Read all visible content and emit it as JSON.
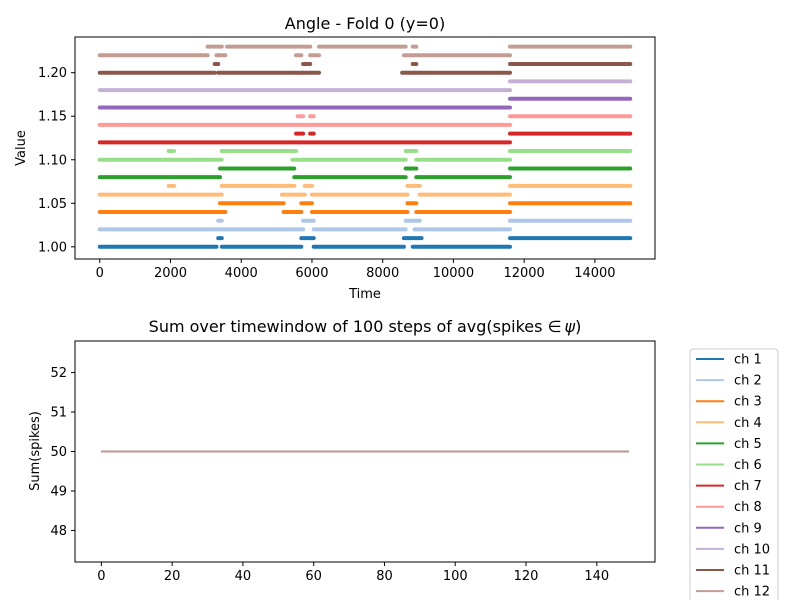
{
  "chart_data": [
    {
      "type": "scatter",
      "title": "Angle - Fold 0 (y=0)",
      "xlabel": "Time",
      "ylabel": "Value",
      "xlim": [
        -700,
        15700
      ],
      "ylim": [
        0.986,
        1.241
      ],
      "xticks": [
        0,
        2000,
        4000,
        6000,
        8000,
        10000,
        12000,
        14000
      ],
      "xtick_labels": [
        "0",
        "2000",
        "4000",
        "6000",
        "8000",
        "10000",
        "12000",
        "14000"
      ],
      "yticks": [
        1.0,
        1.05,
        1.1,
        1.15,
        1.2
      ],
      "ytick_labels": [
        "1.00",
        "1.05",
        "1.10",
        "1.15",
        "1.20"
      ],
      "grid": false,
      "legend": false,
      "series": [
        {
          "color": "#1f77b4",
          "segments": [
            [
              0,
              3300,
              1.0
            ],
            [
              3350,
              3450,
              1.01
            ],
            [
              3450,
              5700,
              1.0
            ],
            [
              5700,
              6050,
              1.01
            ],
            [
              6050,
              8600,
              1.0
            ],
            [
              8600,
              8850,
              1.01
            ],
            [
              8900,
              9100,
              1.01
            ],
            [
              8850,
              11600,
              1.0
            ],
            [
              11600,
              15000,
              1.01
            ]
          ]
        },
        {
          "color": "#aec7e8",
          "segments": [
            [
              0,
              5750,
              1.02
            ],
            [
              3350,
              3450,
              1.03
            ],
            [
              5750,
              6050,
              1.03
            ],
            [
              6050,
              8650,
              1.02
            ],
            [
              8650,
              8900,
              1.03
            ],
            [
              8950,
              9050,
              1.03
            ],
            [
              8900,
              11600,
              1.02
            ],
            [
              11600,
              15000,
              1.03
            ]
          ]
        },
        {
          "color": "#ff7f0e",
          "segments": [
            [
              0,
              3550,
              1.04
            ],
            [
              3400,
              5200,
              1.05
            ],
            [
              5200,
              5700,
              1.04
            ],
            [
              5700,
              6000,
              1.05
            ],
            [
              6000,
              8700,
              1.04
            ],
            [
              8700,
              8950,
              1.05
            ],
            [
              8950,
              11600,
              1.04
            ],
            [
              11600,
              15000,
              1.05
            ]
          ]
        },
        {
          "color": "#ffbb78",
          "segments": [
            [
              0,
              3450,
              1.06
            ],
            [
              1950,
              2100,
              1.07
            ],
            [
              3450,
              5500,
              1.07
            ],
            [
              5150,
              5800,
              1.06
            ],
            [
              5800,
              6000,
              1.07
            ],
            [
              6000,
              8700,
              1.06
            ],
            [
              8700,
              9050,
              1.07
            ],
            [
              9050,
              11600,
              1.06
            ],
            [
              11600,
              15000,
              1.07
            ]
          ]
        },
        {
          "color": "#2ca02c",
          "segments": [
            [
              0,
              3400,
              1.08
            ],
            [
              3400,
              5500,
              1.09
            ],
            [
              5500,
              8650,
              1.08
            ],
            [
              8650,
              8950,
              1.09
            ],
            [
              8950,
              11600,
              1.08
            ],
            [
              11600,
              15000,
              1.09
            ]
          ]
        },
        {
          "color": "#98df8a",
          "segments": [
            [
              0,
              3450,
              1.1
            ],
            [
              1950,
              2100,
              1.11
            ],
            [
              3450,
              5550,
              1.11
            ],
            [
              5450,
              8650,
              1.1
            ],
            [
              8650,
              8950,
              1.11
            ],
            [
              8950,
              11600,
              1.1
            ],
            [
              11600,
              15000,
              1.11
            ]
          ]
        },
        {
          "color": "#d62728",
          "segments": [
            [
              0,
              11600,
              1.12
            ],
            [
              5550,
              5750,
              1.13
            ],
            [
              5950,
              6050,
              1.13
            ],
            [
              11600,
              15000,
              1.13
            ]
          ]
        },
        {
          "color": "#ff9896",
          "segments": [
            [
              0,
              11600,
              1.14
            ],
            [
              5600,
              5750,
              1.15
            ],
            [
              5950,
              6050,
              1.15
            ],
            [
              11600,
              15000,
              1.15
            ]
          ]
        },
        {
          "color": "#9467bd",
          "segments": [
            [
              0,
              11600,
              1.16
            ],
            [
              11600,
              15000,
              1.17
            ]
          ]
        },
        {
          "color": "#c5b0d5",
          "segments": [
            [
              0,
              11600,
              1.18
            ],
            [
              11600,
              15000,
              1.19
            ]
          ]
        },
        {
          "color": "#8c564b",
          "segments": [
            [
              0,
              3250,
              1.2
            ],
            [
              3250,
              3350,
              1.21
            ],
            [
              3350,
              5750,
              1.2
            ],
            [
              5750,
              5950,
              1.21
            ],
            [
              5750,
              6200,
              1.2
            ],
            [
              8550,
              8900,
              1.2
            ],
            [
              8850,
              8950,
              1.21
            ],
            [
              8900,
              11600,
              1.2
            ],
            [
              11600,
              15000,
              1.21
            ]
          ]
        },
        {
          "color": "#c49c94",
          "segments": [
            [
              0,
              3050,
              1.22
            ],
            [
              3050,
              3450,
              1.23
            ],
            [
              3300,
              3550,
              1.22
            ],
            [
              3600,
              5400,
              1.23
            ],
            [
              5450,
              5600,
              1.23
            ],
            [
              5550,
              5700,
              1.22
            ],
            [
              5650,
              5950,
              1.23
            ],
            [
              5950,
              6200,
              1.22
            ],
            [
              6200,
              8650,
              1.23
            ],
            [
              8600,
              8800,
              1.22
            ],
            [
              8850,
              8950,
              1.23
            ],
            [
              8800,
              11600,
              1.22
            ],
            [
              11600,
              15000,
              1.23
            ]
          ]
        }
      ]
    },
    {
      "type": "line",
      "title": "Sum over timewindow of 100 steps of avg(spikes ∈ψ)",
      "title_prefix": "Sum over timewindow of 100 steps of avg(spikes ",
      "title_symbol": "∈",
      "title_psi": "ψ",
      "title_suffix": ")",
      "xlabel": "",
      "ylabel": "Sum(spikes)",
      "xlim": [
        -7.45,
        156.45
      ],
      "ylim": [
        47.2,
        52.8
      ],
      "xticks": [
        0,
        20,
        40,
        60,
        80,
        100,
        120,
        140
      ],
      "xtick_labels": [
        "0",
        "20",
        "40",
        "60",
        "80",
        "100",
        "120",
        "140"
      ],
      "yticks": [
        48,
        49,
        50,
        51,
        52
      ],
      "ytick_labels": [
        "48",
        "49",
        "50",
        "51",
        "52"
      ],
      "x": [
        0,
        149
      ],
      "grid": false,
      "legend": "outside-right",
      "series": [
        {
          "name": "ch 1",
          "color": "#1f77b4",
          "values": [
            50,
            50
          ]
        },
        {
          "name": "ch 2",
          "color": "#aec7e8",
          "values": [
            50,
            50
          ]
        },
        {
          "name": "ch 3",
          "color": "#ff7f0e",
          "values": [
            50,
            50
          ]
        },
        {
          "name": "ch 4",
          "color": "#ffbb78",
          "values": [
            50,
            50
          ]
        },
        {
          "name": "ch 5",
          "color": "#2ca02c",
          "values": [
            50,
            50
          ]
        },
        {
          "name": "ch 6",
          "color": "#98df8a",
          "values": [
            50,
            50
          ]
        },
        {
          "name": "ch 7",
          "color": "#d62728",
          "values": [
            50,
            50
          ]
        },
        {
          "name": "ch 8",
          "color": "#ff9896",
          "values": [
            50,
            50
          ]
        },
        {
          "name": "ch 9",
          "color": "#9467bd",
          "values": [
            50,
            50
          ]
        },
        {
          "name": "ch 10",
          "color": "#c5b0d5",
          "values": [
            50,
            50
          ]
        },
        {
          "name": "ch 11",
          "color": "#8c564b",
          "values": [
            50,
            50
          ]
        },
        {
          "name": "ch 12",
          "color": "#c49c94",
          "values": [
            50,
            50
          ]
        }
      ]
    }
  ]
}
